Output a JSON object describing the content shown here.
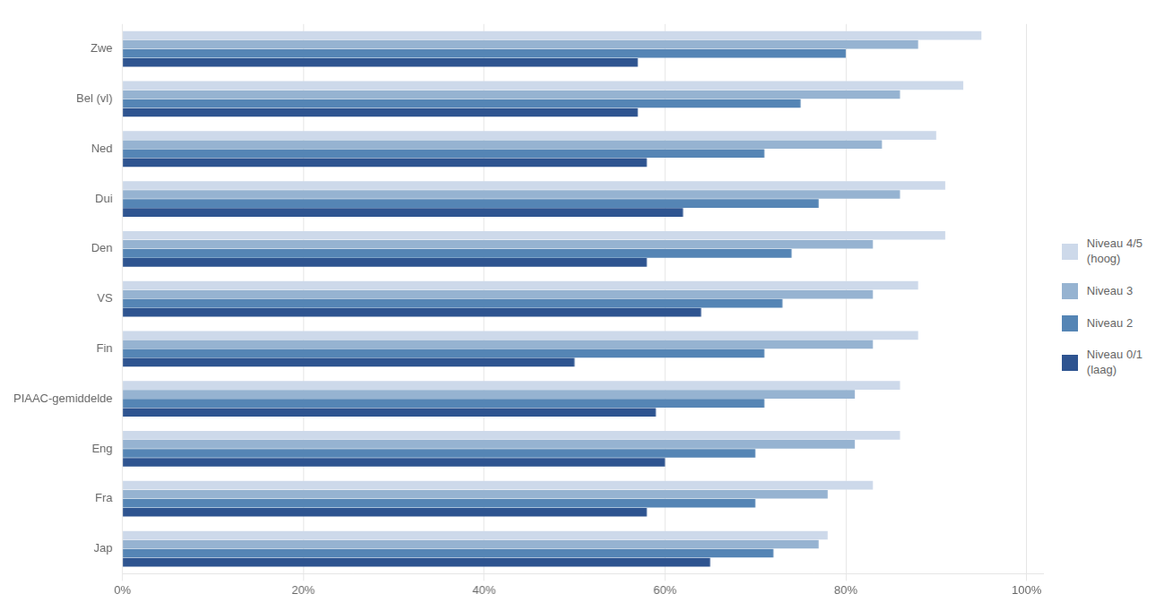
{
  "chart_data": {
    "type": "bar",
    "orientation": "horizontal",
    "categories": [
      "Zwe",
      "Bel (vl)",
      "Ned",
      "Dui",
      "Den",
      "VS",
      "Fin",
      "PIAAC-gemiddelde",
      "Eng",
      "Fra",
      "Jap"
    ],
    "series": [
      {
        "name": "Niveau 4/5\n(hoog)",
        "color": "#cdd9ea",
        "values": [
          95,
          93,
          90,
          91,
          91,
          88,
          88,
          86,
          86,
          83,
          78
        ]
      },
      {
        "name": "Niveau 3",
        "color": "#96b3d1",
        "values": [
          88,
          86,
          84,
          86,
          83,
          83,
          83,
          81,
          81,
          78,
          77
        ]
      },
      {
        "name": "Niveau 2",
        "color": "#5585b5",
        "values": [
          80,
          75,
          71,
          77,
          74,
          73,
          71,
          71,
          70,
          70,
          72
        ]
      },
      {
        "name": "Niveau 0/1\n(laag)",
        "color": "#2e5490",
        "values": [
          57,
          57,
          58,
          62,
          58,
          64,
          50,
          59,
          60,
          58,
          65
        ]
      }
    ],
    "xlim": [
      0,
      102
    ],
    "xticks": [
      {
        "value": 0,
        "label": "0%"
      },
      {
        "value": 20,
        "label": "20%"
      },
      {
        "value": 40,
        "label": "40%"
      },
      {
        "value": 60,
        "label": "60%"
      },
      {
        "value": 80,
        "label": "80%"
      },
      {
        "value": 100,
        "label": "100%"
      }
    ],
    "grid": true,
    "legend": "right"
  }
}
